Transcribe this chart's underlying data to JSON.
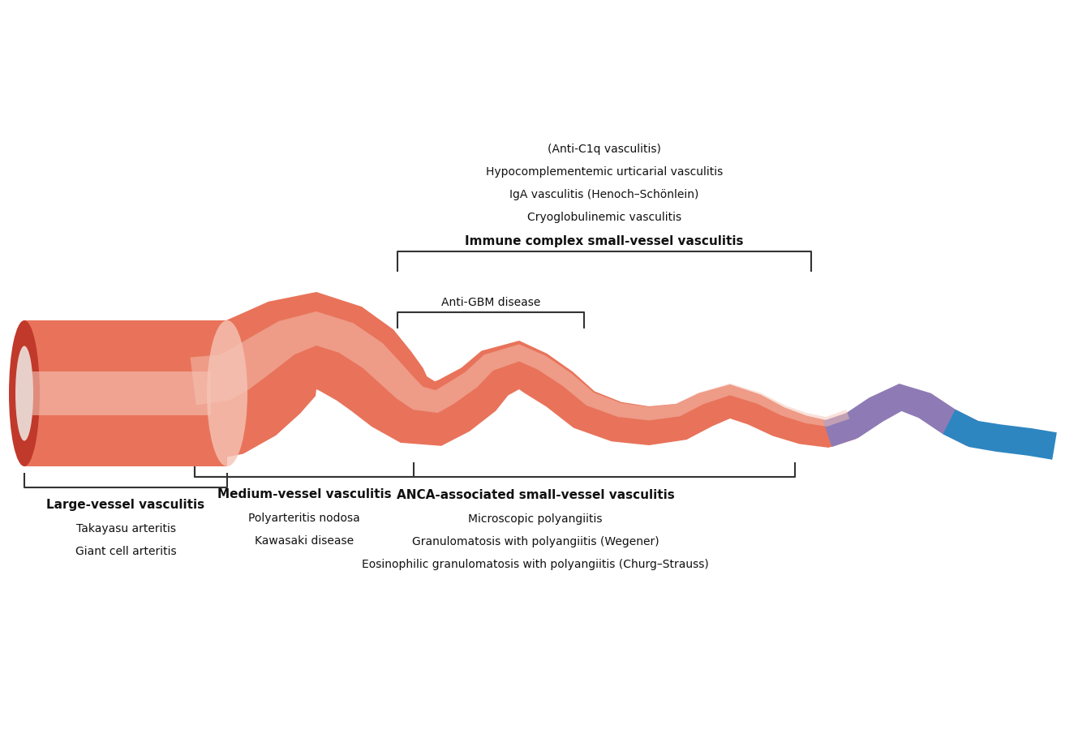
{
  "bg_color": "#ffffff",
  "vessel_color_dark": "#c0392b",
  "vessel_color_mid": "#e8735a",
  "vessel_color_light": "#f5c4b5",
  "vessel_color_red": "#d9534f",
  "medium_color": "#c0392b",
  "anca_color": "#c0392b",
  "immune_color_dark": "#c0392b",
  "purple_color": "#8e7bb5",
  "blue_color": "#2e86c1",
  "bracket_color": "#333333",
  "text_color": "#111111",
  "labels": {
    "large_vessel_title": "Large-vessel vasculitis",
    "large_vessel_items": [
      "Takayasu arteritis",
      "Giant cell arteritis"
    ],
    "medium_vessel_title": "Medium-vessel vasculitis",
    "medium_vessel_items": [
      "Polyarteritis nodosa",
      "Kawasaki disease"
    ],
    "anca_title": "ANCA-associated small-vessel vasculitis",
    "anca_items": [
      "Microscopic polyangiitis",
      "Granulomatosis with polyangiitis (Wegener)",
      "Eosinophilic granulomatosis with polyangiitis (Churg–Strauss)"
    ],
    "immune_title": "Immune complex small-vessel vasculitis",
    "immune_items": [
      "Cryoglobulinemic vasculitis",
      "IgA vasculitis (Henoch–Schönlein)",
      "Hypocomplementemic urticarial vasculitis",
      "(Anti-C1q vasculitis)"
    ],
    "antigbm": "Anti-GBM disease"
  }
}
